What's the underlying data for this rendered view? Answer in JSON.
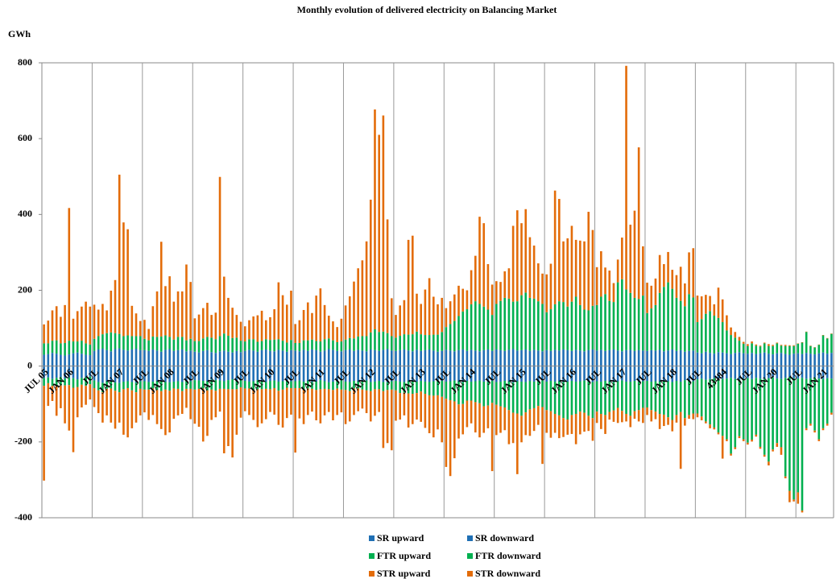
{
  "chart_data": {
    "type": "stacked_bar",
    "title": "Monthly evolution of delivered electricity on Balancing Market",
    "y_label": "GWh",
    "categories": [
      "JUL 05",
      null,
      null,
      null,
      null,
      null,
      "JAN 06",
      null,
      null,
      null,
      null,
      null,
      "JUL",
      null,
      null,
      null,
      null,
      null,
      "JAN 07",
      null,
      null,
      null,
      null,
      null,
      "JUL",
      null,
      null,
      null,
      null,
      null,
      "JAN 08",
      null,
      null,
      null,
      null,
      null,
      "JUL",
      null,
      null,
      null,
      null,
      null,
      "JAN 09",
      null,
      null,
      null,
      null,
      null,
      "JUL",
      null,
      null,
      null,
      null,
      null,
      "JAN 10",
      null,
      null,
      null,
      null,
      null,
      "JUL",
      null,
      null,
      null,
      null,
      null,
      "JAN 11",
      null,
      null,
      null,
      null,
      null,
      "JUL",
      null,
      null,
      null,
      null,
      null,
      "JAN 12",
      null,
      null,
      null,
      null,
      null,
      "JUL",
      null,
      null,
      null,
      null,
      null,
      "JAN 13",
      null,
      null,
      null,
      null,
      null,
      "JUL",
      null,
      null,
      null,
      null,
      null,
      "JAN 14",
      null,
      null,
      null,
      null,
      null,
      "JUL",
      null,
      null,
      null,
      null,
      null,
      "JAN 15",
      null,
      null,
      null,
      null,
      null,
      "JUL",
      null,
      null,
      null,
      null,
      null,
      "JAN 16",
      null,
      null,
      null,
      null,
      null,
      "JUL",
      null,
      null,
      null,
      null,
      null,
      "JAN 17",
      null,
      null,
      null,
      null,
      null,
      "JUL",
      null,
      null,
      null,
      null,
      null,
      "JAN 18",
      null,
      null,
      null,
      null,
      null,
      "JUL",
      null,
      null,
      null,
      null,
      null,
      "43484",
      null,
      null,
      null,
      null,
      null,
      "JUL",
      null,
      null,
      null,
      null,
      null,
      "JAN 20",
      null,
      null,
      null,
      null,
      null,
      "JUL",
      null,
      null,
      null,
      null,
      null,
      "JAN 21",
      null,
      null
    ],
    "series": [
      {
        "name": "SR upward",
        "color": "#1f6fb4",
        "values": [
          30,
          32,
          35,
          33,
          30,
          28,
          31,
          34,
          36,
          33,
          30,
          29,
          40,
          44,
          46,
          42,
          39,
          45,
          47,
          43,
          41,
          44,
          46,
          42,
          42,
          40,
          44,
          41,
          38,
          43,
          45,
          40,
          42,
          44,
          39,
          41,
          38,
          36,
          40,
          42,
          37,
          35,
          39,
          41,
          38,
          36,
          40,
          37,
          40,
          43,
          41,
          38,
          42,
          44,
          40,
          39,
          43,
          41,
          38,
          42,
          41,
          39,
          43,
          40,
          44,
          42,
          38,
          41,
          45,
          43,
          40,
          39,
          42,
          44,
          40,
          43,
          41,
          39,
          44,
          42,
          40,
          43,
          45,
          41,
          40,
          42,
          44,
          41,
          39,
          43,
          40,
          42,
          44,
          41,
          38,
          40,
          43,
          41,
          39,
          42,
          44,
          40,
          43,
          41,
          39,
          42,
          44,
          40,
          44,
          42,
          40,
          43,
          45,
          41,
          42,
          44,
          40,
          43,
          41,
          39,
          42,
          40,
          43,
          41,
          44,
          42,
          40,
          43,
          41,
          39,
          42,
          44,
          41,
          43,
          40,
          42,
          44,
          41,
          39,
          42,
          43,
          40,
          42,
          41,
          40,
          42,
          41,
          43,
          39,
          41,
          44,
          40,
          42,
          38,
          40,
          41,
          36,
          34,
          38,
          35,
          33,
          37,
          36,
          34,
          32,
          35,
          37,
          34,
          33,
          35,
          32,
          34,
          36,
          33,
          31,
          34,
          35,
          32,
          30,
          33,
          34,
          32,
          35,
          33,
          31,
          34,
          36,
          33,
          35
        ]
      },
      {
        "name": "SR downward",
        "color": "#1f6fb4",
        "values": [
          -32,
          -30,
          -34,
          -31,
          -29,
          -33,
          -30,
          -32,
          -35,
          -31,
          -30,
          -28,
          -38,
          -42,
          -44,
          -40,
          -41,
          -43,
          -45,
          -41,
          -40,
          -42,
          -44,
          -40,
          -40,
          -42,
          -41,
          -39,
          -40,
          -42,
          -43,
          -41,
          -40,
          -42,
          -38,
          -40,
          -37,
          -38,
          -39,
          -40,
          -36,
          -37,
          -38,
          -40,
          -37,
          -35,
          -39,
          -36,
          -39,
          -41,
          -40,
          -37,
          -41,
          -42,
          -39,
          -38,
          -41,
          -40,
          -37,
          -40,
          -40,
          -38,
          -41,
          -39,
          -42,
          -41,
          -37,
          -40,
          -43,
          -41,
          -39,
          -38,
          -41,
          -42,
          -39,
          -41,
          -40,
          -38,
          -42,
          -41,
          -39,
          -42,
          -43,
          -40,
          -39,
          -41,
          -42,
          -40,
          -38,
          -41,
          -39,
          -41,
          -42,
          -40,
          -37,
          -39,
          -41,
          -40,
          -38,
          -41,
          -42,
          -39,
          -41,
          -40,
          -38,
          -41,
          -42,
          -39,
          -42,
          -41,
          -39,
          -41,
          -43,
          -40,
          -41,
          -42,
          -39,
          -41,
          -40,
          -38,
          -41,
          -39,
          -41,
          -40,
          -42,
          -41,
          -39,
          -41,
          -40,
          -38,
          -41,
          -42,
          -40,
          -41,
          -39,
          -41,
          -42,
          -40,
          -38,
          -41,
          -41,
          -39,
          -41,
          -40,
          -39,
          -41,
          -40,
          -41,
          -38,
          -40,
          -42,
          -39,
          -41,
          -37,
          -39,
          -40,
          -35,
          -33,
          -36,
          -34,
          -32,
          -35,
          -34,
          -33,
          -31,
          -34,
          -35,
          -33,
          -32,
          -34,
          -31,
          -33,
          -34,
          -32,
          -30,
          -33,
          -34,
          -31,
          -29,
          -32,
          -33,
          -31,
          -34,
          -32,
          -30,
          -33,
          -34,
          -32,
          -33
        ]
      },
      {
        "name": "FTR upward",
        "color": "#00b050",
        "values": [
          30,
          28,
          32,
          35,
          30,
          33,
          36,
          31,
          29,
          34,
          30,
          28,
          32,
          35,
          38,
          45,
          50,
          42,
          38,
          36,
          40,
          35,
          33,
          37,
          30,
          28,
          34,
          36,
          40,
          38,
          32,
          30,
          35,
          33,
          29,
          31,
          28,
          30,
          33,
          35,
          38,
          36,
          40,
          45,
          42,
          38,
          35,
          30,
          25,
          28,
          30,
          26,
          24,
          27,
          29,
          31,
          28,
          26,
          24,
          27,
          20,
          22,
          25,
          28,
          26,
          24,
          27,
          30,
          28,
          25,
          23,
          26,
          28,
          30,
          33,
          35,
          38,
          40,
          45,
          55,
          50,
          48,
          42,
          38,
          35,
          38,
          40,
          42,
          45,
          48,
          44,
          40,
          38,
          42,
          45,
          50,
          60,
          70,
          80,
          90,
          100,
          110,
          120,
          130,
          125,
          115,
          105,
          95,
          120,
          130,
          140,
          135,
          125,
          130,
          145,
          150,
          140,
          135,
          130,
          125,
          100,
          110,
          120,
          130,
          125,
          115,
          130,
          140,
          120,
          110,
          105,
          115,
          120,
          140,
          150,
          130,
          125,
          180,
          190,
          160,
          150,
          140,
          135,
          145,
          100,
          110,
          120,
          150,
          170,
          180,
          160,
          140,
          130,
          120,
          150,
          140,
          80,
          90,
          100,
          110,
          100,
          90,
          80,
          60,
          50,
          40,
          30,
          25,
          20,
          25,
          22,
          18,
          24,
          20,
          22,
          26,
          19,
          21,
          23,
          20,
          25,
          30,
          55,
          20,
          18,
          22,
          45,
          40,
          50
        ]
      },
      {
        "name": "FTR downward",
        "color": "#00b050",
        "values": [
          -20,
          -15,
          -18,
          -20,
          -22,
          -18,
          -20,
          -25,
          -20,
          -18,
          -22,
          -20,
          -20,
          -22,
          -25,
          -20,
          -18,
          -22,
          -24,
          -20,
          -18,
          -22,
          -25,
          -20,
          -22,
          -20,
          -18,
          -24,
          -26,
          -20,
          -22,
          -18,
          -20,
          -24,
          -22,
          -20,
          -25,
          -22,
          -20,
          -24,
          -26,
          -28,
          -22,
          -20,
          -24,
          -26,
          -22,
          -20,
          -20,
          -18,
          -22,
          -24,
          -20,
          -18,
          -22,
          -20,
          -24,
          -22,
          -20,
          -18,
          -18,
          -20,
          -22,
          -20,
          -18,
          -22,
          -24,
          -20,
          -18,
          -22,
          -20,
          -24,
          -22,
          -24,
          -20,
          -18,
          -22,
          -26,
          -24,
          -20,
          -22,
          -24,
          -20,
          -22,
          -25,
          -30,
          -28,
          -32,
          -35,
          -30,
          -28,
          -32,
          -35,
          -38,
          -40,
          -42,
          -45,
          -50,
          -55,
          -60,
          -58,
          -52,
          -50,
          -55,
          -60,
          -65,
          -62,
          -58,
          -60,
          -65,
          -70,
          -75,
          -80,
          -85,
          -90,
          -80,
          -75,
          -70,
          -65,
          -70,
          -75,
          -80,
          -85,
          -90,
          -95,
          -100,
          -90,
          -85,
          -80,
          -85,
          -90,
          -95,
          -80,
          -85,
          -90,
          -80,
          -75,
          -70,
          -80,
          -85,
          -90,
          -80,
          -75,
          -70,
          -70,
          -75,
          -80,
          -85,
          -90,
          -95,
          -100,
          -90,
          -80,
          -100,
          -90,
          -85,
          -90,
          -100,
          -110,
          -120,
          -130,
          -140,
          -150,
          -160,
          -200,
          -180,
          -150,
          -160,
          -170,
          -160,
          -150,
          -180,
          -200,
          -220,
          -190,
          -170,
          -180,
          -260,
          -300,
          -320,
          -300,
          -350,
          -130,
          -120,
          -140,
          -160,
          -130,
          -120,
          -90
        ]
      },
      {
        "name": "STR upward",
        "color": "#e36c09",
        "values": [
          50,
          60,
          80,
          90,
          70,
          100,
          350,
          60,
          80,
          90,
          110,
          100,
          90,
          70,
          80,
          60,
          110,
          140,
          420,
          300,
          280,
          80,
          60,
          40,
          50,
          30,
          80,
          120,
          250,
          130,
          160,
          100,
          120,
          120,
          200,
          150,
          60,
          70,
          80,
          90,
          60,
          70,
          420,
          150,
          100,
          80,
          60,
          50,
          40,
          50,
          60,
          70,
          80,
          50,
          60,
          80,
          150,
          120,
          100,
          130,
          50,
          60,
          80,
          100,
          70,
          120,
          140,
          90,
          60,
          50,
          40,
          60,
          90,
          110,
          150,
          180,
          200,
          250,
          350,
          580,
          520,
          570,
          300,
          100,
          60,
          80,
          90,
          250,
          260,
          100,
          80,
          120,
          150,
          100,
          80,
          90,
          50,
          60,
          70,
          80,
          60,
          50,
          90,
          120,
          230,
          220,
          120,
          80,
          60,
          50,
          70,
          80,
          200,
          240,
          190,
          220,
          160,
          140,
          100,
          80,
          100,
          120,
          300,
          270,
          160,
          180,
          200,
          150,
          170,
          180,
          260,
          200,
          100,
          120,
          70,
          80,
          50,
          60,
          110,
          590,
          180,
          230,
          400,
          130,
          80,
          60,
          70,
          100,
          60,
          80,
          50,
          60,
          90,
          60,
          110,
          130,
          70,
          60,
          50,
          40,
          30,
          80,
          60,
          40,
          20,
          15,
          10,
          5,
          5,
          5,
          3,
          2,
          2,
          5,
          3,
          2,
          2,
          3,
          2,
          2,
          1,
          1,
          1,
          1,
          1,
          1,
          1,
          1,
          1
        ]
      },
      {
        "name": "STR downward",
        "color": "#e36c09",
        "values": [
          -250,
          -60,
          -40,
          -80,
          -60,
          -100,
          -120,
          -170,
          -80,
          -60,
          -50,
          -40,
          -50,
          -60,
          -80,
          -70,
          -90,
          -100,
          -80,
          -120,
          -130,
          -100,
          -80,
          -70,
          -60,
          -80,
          -70,
          -90,
          -100,
          -120,
          -110,
          -80,
          -70,
          -60,
          -50,
          -80,
          -90,
          -100,
          -140,
          -120,
          -80,
          -70,
          -60,
          -170,
          -150,
          -180,
          -120,
          -80,
          -60,
          -70,
          -80,
          -100,
          -90,
          -80,
          -60,
          -70,
          -90,
          -100,
          -80,
          -70,
          -170,
          -80,
          -90,
          -70,
          -60,
          -80,
          -90,
          -70,
          -60,
          -80,
          -70,
          -60,
          -90,
          -80,
          -70,
          -60,
          -50,
          -60,
          -80,
          -70,
          -60,
          -150,
          -140,
          -160,
          -80,
          -70,
          -60,
          -90,
          -80,
          -70,
          -80,
          -90,
          -100,
          -110,
          -90,
          -120,
          -180,
          -200,
          -150,
          -90,
          -80,
          -70,
          -60,
          -80,
          -90,
          -70,
          -60,
          -180,
          -80,
          -70,
          -60,
          -90,
          -80,
          -160,
          -70,
          -60,
          -70,
          -60,
          -50,
          -150,
          -60,
          -70,
          -50,
          -60,
          -50,
          -40,
          -50,
          -80,
          -60,
          -50,
          -40,
          -60,
          -30,
          -40,
          -50,
          -20,
          -30,
          -40,
          -30,
          -20,
          -30,
          -20,
          -30,
          -40,
          -20,
          -30,
          -20,
          -40,
          -30,
          -20,
          -30,
          -20,
          -150,
          -20,
          -10,
          -15,
          -10,
          -10,
          -5,
          -10,
          -5,
          -5,
          -60,
          -5,
          -5,
          -5,
          -5,
          -5,
          -5,
          -5,
          -5,
          -5,
          -5,
          -10,
          -5,
          -10,
          -20,
          -5,
          -30,
          -5,
          -30,
          -5,
          -5,
          -5,
          -5,
          -5,
          -5,
          -5,
          -5
        ]
      }
    ],
    "ylim": [
      -400,
      800
    ],
    "yticks": [
      -400,
      -200,
      0,
      200,
      400,
      600,
      800
    ],
    "grid": true,
    "legend_position": "bottom"
  }
}
